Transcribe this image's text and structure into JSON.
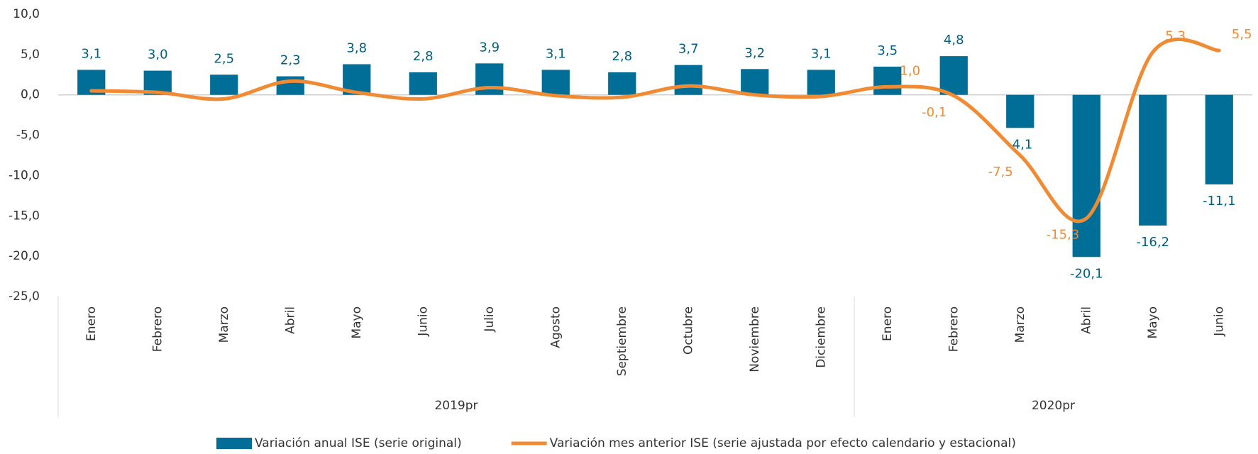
{
  "chart_data": {
    "type": "bar",
    "categories": [
      "Enero",
      "Febrero",
      "Marzo",
      "Abril",
      "Mayo",
      "Junio",
      "Julio",
      "Agosto",
      "Septiembre",
      "Octubre",
      "Noviembre",
      "Diciembre",
      "Enero",
      "Febrero",
      "Marzo",
      "Abril",
      "Mayo",
      "Junio"
    ],
    "groups": [
      {
        "label": "2019pr",
        "span": 12
      },
      {
        "label": "2020pr",
        "span": 6
      }
    ],
    "series": [
      {
        "name": "Variación anual ISE (serie original)",
        "type": "bar",
        "color": "#006e96",
        "values": [
          3.1,
          3.0,
          2.5,
          2.3,
          3.8,
          2.8,
          3.9,
          3.1,
          2.8,
          3.7,
          3.2,
          3.1,
          3.5,
          4.8,
          -4.1,
          -20.1,
          -16.2,
          -11.1
        ],
        "value_labels": [
          "3,1",
          "3,0",
          "2,5",
          "2,3",
          "3,8",
          "2,8",
          "3,9",
          "3,1",
          "2,8",
          "3,7",
          "3,2",
          "3,1",
          "3,5",
          "4,8",
          "-4,1",
          "-20,1",
          "-16,2",
          "-11,1"
        ]
      },
      {
        "name": "Variación mes anterior ISE (serie ajustada por efecto calendario y estacional)",
        "type": "line",
        "color": "#f08a33",
        "values": [
          0.5,
          0.3,
          -0.5,
          1.7,
          0.3,
          -0.5,
          0.9,
          -0.1,
          -0.3,
          1.1,
          0.0,
          -0.2,
          1.0,
          -0.1,
          -7.5,
          -15.3,
          5.3,
          5.5
        ],
        "value_labels": [
          null,
          null,
          null,
          null,
          null,
          null,
          null,
          null,
          null,
          null,
          null,
          null,
          "1,0",
          "-0,1",
          "-7,5",
          "-15,3",
          "5,3",
          "5,5"
        ]
      }
    ],
    "ylim": [
      -25,
      10
    ],
    "yticks": [
      {
        "value": -25,
        "label": "-25,0"
      },
      {
        "value": -20,
        "label": "-20,0"
      },
      {
        "value": -15,
        "label": "-15,0"
      },
      {
        "value": -10,
        "label": "-10,0"
      },
      {
        "value": -5,
        "label": "-5,0"
      },
      {
        "value": 0,
        "label": "0,0"
      },
      {
        "value": 5,
        "label": "5,0"
      },
      {
        "value": 10,
        "label": "10,0"
      }
    ],
    "grid": false,
    "legend": "bottom"
  }
}
